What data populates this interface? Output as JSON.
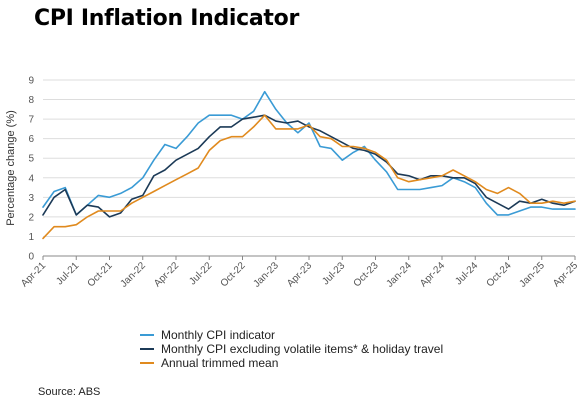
{
  "title": "CPI Inflation Indicator",
  "source": "Source: ABS",
  "chart_data": {
    "type": "line",
    "ylabel": "Percentage change (%)",
    "ylim": [
      0,
      9
    ],
    "yticks": [
      0,
      1,
      2,
      3,
      4,
      5,
      6,
      7,
      8,
      9
    ],
    "grid": true,
    "legend_placement": "bottom",
    "xtick_labels": [
      "Apr-21",
      "Jul-21",
      "Oct-21",
      "Jan-22",
      "Apr-22",
      "Jul-22",
      "Oct-22",
      "Jan-23",
      "Apr-23",
      "Jul-23",
      "Oct-23",
      "Jan-24",
      "Apr-24",
      "Jul-24",
      "Oct-24",
      "Jan-25",
      "Apr-25"
    ],
    "x": [
      "Apr-21",
      "May-21",
      "Jun-21",
      "Jul-21",
      "Aug-21",
      "Sep-21",
      "Oct-21",
      "Nov-21",
      "Dec-21",
      "Jan-22",
      "Feb-22",
      "Mar-22",
      "Apr-22",
      "May-22",
      "Jun-22",
      "Jul-22",
      "Aug-22",
      "Sep-22",
      "Oct-22",
      "Nov-22",
      "Dec-22",
      "Jan-23",
      "Feb-23",
      "Mar-23",
      "Apr-23",
      "May-23",
      "Jun-23",
      "Jul-23",
      "Aug-23",
      "Sep-23",
      "Oct-23",
      "Nov-23",
      "Dec-23",
      "Jan-24",
      "Feb-24",
      "Mar-24",
      "Apr-24",
      "May-24",
      "Jun-24",
      "Jul-24",
      "Aug-24",
      "Sep-24",
      "Oct-24",
      "Nov-24",
      "Dec-24",
      "Jan-25",
      "Feb-25",
      "Mar-25",
      "Apr-25"
    ],
    "series": [
      {
        "name": "Monthly CPI indicator",
        "color": "#3a9bd5",
        "values": [
          2.5,
          3.3,
          3.5,
          2.1,
          2.6,
          3.1,
          3.0,
          3.2,
          3.5,
          4.0,
          4.9,
          5.7,
          5.5,
          6.1,
          6.8,
          7.2,
          7.2,
          7.2,
          7.0,
          7.4,
          8.4,
          7.5,
          6.8,
          6.3,
          6.8,
          5.6,
          5.5,
          4.9,
          5.3,
          5.6,
          4.9,
          4.3,
          3.4,
          3.4,
          3.4,
          3.5,
          3.6,
          4.0,
          3.8,
          3.5,
          2.7,
          2.1,
          2.1,
          2.3,
          2.5,
          2.5,
          2.4,
          2.4,
          2.4
        ]
      },
      {
        "name": "Monthly CPI excluding volatile items* & holiday travel",
        "color": "#1c3a57",
        "values": [
          2.1,
          3.0,
          3.4,
          2.1,
          2.6,
          2.5,
          2.0,
          2.2,
          2.9,
          3.1,
          4.1,
          4.4,
          4.9,
          5.2,
          5.5,
          6.1,
          6.6,
          6.6,
          7.0,
          7.1,
          7.2,
          6.9,
          6.8,
          6.9,
          6.6,
          6.4,
          6.1,
          5.8,
          5.5,
          5.4,
          5.2,
          4.8,
          4.2,
          4.1,
          3.9,
          4.1,
          4.1,
          4.0,
          4.0,
          3.7,
          3.0,
          2.7,
          2.4,
          2.8,
          2.7,
          2.9,
          2.7,
          2.6,
          2.8
        ]
      },
      {
        "name": "Annual trimmed mean",
        "color": "#e08a1e",
        "values": [
          0.9,
          1.5,
          1.5,
          1.6,
          2.0,
          2.3,
          2.3,
          2.3,
          2.7,
          3.0,
          3.3,
          3.6,
          3.9,
          4.2,
          4.5,
          5.4,
          5.9,
          6.1,
          6.1,
          6.6,
          7.2,
          6.5,
          6.5,
          6.5,
          6.7,
          6.1,
          6.0,
          5.6,
          5.6,
          5.5,
          5.3,
          4.9,
          4.0,
          3.8,
          3.9,
          4.0,
          4.1,
          4.4,
          4.1,
          3.8,
          3.4,
          3.2,
          3.5,
          3.2,
          2.7,
          2.7,
          2.8,
          2.7,
          2.8
        ]
      }
    ]
  }
}
